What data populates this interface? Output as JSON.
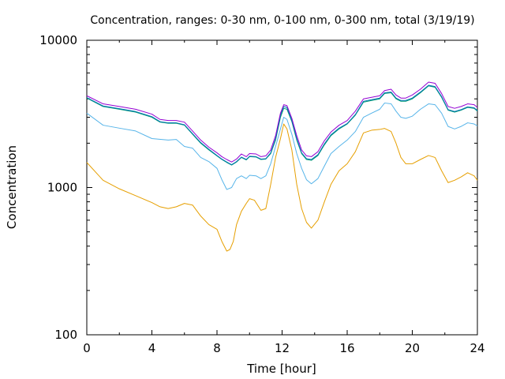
{
  "chart_data": {
    "type": "line",
    "title": "Concentration, ranges: 0-30 nm, 0-100 nm, 0-300 nm, total (3/19/19)",
    "xlabel": "Time [hour]",
    "ylabel": "Concentration",
    "xlim": [
      0,
      24
    ],
    "ylim": [
      100,
      10000
    ],
    "yscale": "log",
    "x_ticks": [
      "0",
      "4",
      "8",
      "12",
      "16",
      "20",
      "24"
    ],
    "y_ticks": [
      "100",
      "1000",
      "10000"
    ],
    "grid": false,
    "legend": "none",
    "series": [
      {
        "color": "#e69f00",
        "points": [
          [
            0,
            1480
          ],
          [
            1,
            1120
          ],
          [
            2,
            980
          ],
          [
            3,
            880
          ],
          [
            4,
            790
          ],
          [
            4.5,
            740
          ],
          [
            5,
            720
          ],
          [
            5.5,
            740
          ],
          [
            6,
            780
          ],
          [
            6.5,
            760
          ],
          [
            7,
            640
          ],
          [
            7.5,
            560
          ],
          [
            8,
            520
          ],
          [
            8.3,
            430
          ],
          [
            8.6,
            370
          ],
          [
            8.8,
            380
          ],
          [
            9,
            430
          ],
          [
            9.2,
            560
          ],
          [
            9.5,
            690
          ],
          [
            9.8,
            780
          ],
          [
            10,
            840
          ],
          [
            10.3,
            820
          ],
          [
            10.7,
            700
          ],
          [
            11,
            720
          ],
          [
            11.3,
            1050
          ],
          [
            11.6,
            1600
          ],
          [
            11.9,
            2150
          ],
          [
            12.1,
            2700
          ],
          [
            12.3,
            2500
          ],
          [
            12.6,
            1800
          ],
          [
            12.9,
            1050
          ],
          [
            13.2,
            720
          ],
          [
            13.5,
            580
          ],
          [
            13.8,
            530
          ],
          [
            14.2,
            600
          ],
          [
            14.6,
            800
          ],
          [
            15,
            1050
          ],
          [
            15.5,
            1300
          ],
          [
            16,
            1450
          ],
          [
            16.5,
            1750
          ],
          [
            17,
            2350
          ],
          [
            17.5,
            2450
          ],
          [
            18,
            2480
          ],
          [
            18.3,
            2520
          ],
          [
            18.7,
            2400
          ],
          [
            19,
            2000
          ],
          [
            19.3,
            1600
          ],
          [
            19.6,
            1450
          ],
          [
            20,
            1450
          ],
          [
            20.5,
            1550
          ],
          [
            21,
            1650
          ],
          [
            21.4,
            1600
          ],
          [
            21.8,
            1300
          ],
          [
            22.2,
            1080
          ],
          [
            22.6,
            1120
          ],
          [
            23,
            1180
          ],
          [
            23.4,
            1260
          ],
          [
            23.8,
            1200
          ],
          [
            24,
            1120
          ]
        ]
      },
      {
        "color": "#56b4e9",
        "points": [
          [
            0,
            3200
          ],
          [
            1,
            2650
          ],
          [
            2,
            2530
          ],
          [
            3,
            2420
          ],
          [
            4,
            2150
          ],
          [
            5,
            2100
          ],
          [
            5.5,
            2120
          ],
          [
            6,
            1900
          ],
          [
            6.5,
            1850
          ],
          [
            7,
            1600
          ],
          [
            7.5,
            1500
          ],
          [
            8,
            1350
          ],
          [
            8.3,
            1130
          ],
          [
            8.6,
            970
          ],
          [
            8.9,
            1000
          ],
          [
            9.2,
            1150
          ],
          [
            9.5,
            1200
          ],
          [
            9.8,
            1150
          ],
          [
            10,
            1210
          ],
          [
            10.4,
            1200
          ],
          [
            10.7,
            1150
          ],
          [
            11,
            1200
          ],
          [
            11.3,
            1450
          ],
          [
            11.6,
            1900
          ],
          [
            11.9,
            2500
          ],
          [
            12.1,
            3000
          ],
          [
            12.3,
            2900
          ],
          [
            12.6,
            2300
          ],
          [
            12.9,
            1700
          ],
          [
            13.2,
            1350
          ],
          [
            13.5,
            1130
          ],
          [
            13.8,
            1060
          ],
          [
            14.2,
            1150
          ],
          [
            14.6,
            1400
          ],
          [
            15,
            1700
          ],
          [
            15.5,
            1900
          ],
          [
            16,
            2100
          ],
          [
            16.5,
            2400
          ],
          [
            17,
            3000
          ],
          [
            17.5,
            3200
          ],
          [
            18,
            3400
          ],
          [
            18.3,
            3750
          ],
          [
            18.7,
            3700
          ],
          [
            19,
            3300
          ],
          [
            19.3,
            3000
          ],
          [
            19.6,
            2950
          ],
          [
            20,
            3050
          ],
          [
            20.5,
            3400
          ],
          [
            21,
            3700
          ],
          [
            21.4,
            3650
          ],
          [
            21.8,
            3200
          ],
          [
            22.2,
            2600
          ],
          [
            22.6,
            2500
          ],
          [
            23,
            2600
          ],
          [
            23.4,
            2750
          ],
          [
            23.8,
            2700
          ],
          [
            24,
            2620
          ]
        ]
      },
      {
        "color": "#009e73",
        "points": [
          [
            0,
            4050
          ],
          [
            1,
            3550
          ],
          [
            2,
            3400
          ],
          [
            3,
            3250
          ],
          [
            4,
            3000
          ],
          [
            4.5,
            2780
          ],
          [
            5,
            2730
          ],
          [
            5.5,
            2730
          ],
          [
            6,
            2650
          ],
          [
            6.5,
            2300
          ],
          [
            7,
            2000
          ],
          [
            7.5,
            1800
          ],
          [
            8,
            1640
          ],
          [
            8.3,
            1550
          ],
          [
            8.6,
            1480
          ],
          [
            8.9,
            1420
          ],
          [
            9.2,
            1490
          ],
          [
            9.5,
            1600
          ],
          [
            9.8,
            1540
          ],
          [
            10,
            1620
          ],
          [
            10.4,
            1610
          ],
          [
            10.7,
            1550
          ],
          [
            11,
            1560
          ],
          [
            11.3,
            1700
          ],
          [
            11.6,
            2100
          ],
          [
            11.9,
            3000
          ],
          [
            12.1,
            3450
          ],
          [
            12.3,
            3400
          ],
          [
            12.6,
            2800
          ],
          [
            12.9,
            2100
          ],
          [
            13.2,
            1700
          ],
          [
            13.5,
            1550
          ],
          [
            13.8,
            1530
          ],
          [
            14.2,
            1650
          ],
          [
            14.6,
            1950
          ],
          [
            15,
            2250
          ],
          [
            15.5,
            2500
          ],
          [
            16,
            2700
          ],
          [
            16.5,
            3100
          ],
          [
            17,
            3800
          ],
          [
            17.5,
            3900
          ],
          [
            18,
            4000
          ],
          [
            18.3,
            4350
          ],
          [
            18.7,
            4400
          ],
          [
            19,
            4000
          ],
          [
            19.3,
            3850
          ],
          [
            19.6,
            3850
          ],
          [
            20,
            4000
          ],
          [
            20.5,
            4400
          ],
          [
            21,
            4900
          ],
          [
            21.4,
            4800
          ],
          [
            21.8,
            4100
          ],
          [
            22.2,
            3350
          ],
          [
            22.6,
            3250
          ],
          [
            23,
            3350
          ],
          [
            23.4,
            3500
          ],
          [
            23.8,
            3450
          ],
          [
            24,
            3300
          ]
        ]
      },
      {
        "color": "#0072b2",
        "points": [
          [
            0,
            4080
          ],
          [
            1,
            3580
          ],
          [
            2,
            3430
          ],
          [
            3,
            3280
          ],
          [
            4,
            3030
          ],
          [
            4.5,
            2800
          ],
          [
            5,
            2750
          ],
          [
            5.5,
            2750
          ],
          [
            6,
            2670
          ],
          [
            6.5,
            2320
          ],
          [
            7,
            2020
          ],
          [
            7.5,
            1820
          ],
          [
            8,
            1650
          ],
          [
            8.3,
            1560
          ],
          [
            8.6,
            1490
          ],
          [
            8.9,
            1430
          ],
          [
            9.2,
            1500
          ],
          [
            9.5,
            1610
          ],
          [
            9.8,
            1550
          ],
          [
            10,
            1630
          ],
          [
            10.4,
            1620
          ],
          [
            10.7,
            1560
          ],
          [
            11,
            1570
          ],
          [
            11.3,
            1720
          ],
          [
            11.6,
            2150
          ],
          [
            11.9,
            3100
          ],
          [
            12.1,
            3550
          ],
          [
            12.3,
            3500
          ],
          [
            12.6,
            2850
          ],
          [
            12.9,
            2150
          ],
          [
            13.2,
            1720
          ],
          [
            13.5,
            1570
          ],
          [
            13.8,
            1550
          ],
          [
            14.2,
            1670
          ],
          [
            14.6,
            1980
          ],
          [
            15,
            2280
          ],
          [
            15.5,
            2530
          ],
          [
            16,
            2720
          ],
          [
            16.5,
            3130
          ],
          [
            17,
            3850
          ],
          [
            17.5,
            3950
          ],
          [
            18,
            4050
          ],
          [
            18.3,
            4400
          ],
          [
            18.7,
            4450
          ],
          [
            19,
            4050
          ],
          [
            19.3,
            3900
          ],
          [
            19.6,
            3900
          ],
          [
            20,
            4050
          ],
          [
            20.5,
            4450
          ],
          [
            21,
            4950
          ],
          [
            21.4,
            4850
          ],
          [
            21.8,
            4150
          ],
          [
            22.2,
            3380
          ],
          [
            22.6,
            3280
          ],
          [
            23,
            3380
          ],
          [
            23.4,
            3530
          ],
          [
            23.8,
            3480
          ],
          [
            24,
            3330
          ]
        ]
      },
      {
        "color": "#9400d3",
        "points": [
          [
            0,
            4200
          ],
          [
            1,
            3700
          ],
          [
            2,
            3550
          ],
          [
            3,
            3400
          ],
          [
            4,
            3150
          ],
          [
            4.5,
            2900
          ],
          [
            5,
            2850
          ],
          [
            5.5,
            2850
          ],
          [
            6,
            2780
          ],
          [
            6.5,
            2420
          ],
          [
            7,
            2100
          ],
          [
            7.5,
            1880
          ],
          [
            8,
            1720
          ],
          [
            8.3,
            1620
          ],
          [
            8.6,
            1550
          ],
          [
            8.9,
            1490
          ],
          [
            9.2,
            1560
          ],
          [
            9.5,
            1690
          ],
          [
            9.8,
            1620
          ],
          [
            10,
            1700
          ],
          [
            10.4,
            1690
          ],
          [
            10.7,
            1620
          ],
          [
            11,
            1640
          ],
          [
            11.3,
            1800
          ],
          [
            11.6,
            2250
          ],
          [
            11.9,
            3200
          ],
          [
            12.1,
            3650
          ],
          [
            12.3,
            3600
          ],
          [
            12.6,
            2950
          ],
          [
            12.9,
            2250
          ],
          [
            13.2,
            1800
          ],
          [
            13.5,
            1640
          ],
          [
            13.8,
            1620
          ],
          [
            14.2,
            1750
          ],
          [
            14.6,
            2080
          ],
          [
            15,
            2380
          ],
          [
            15.5,
            2650
          ],
          [
            16,
            2850
          ],
          [
            16.5,
            3300
          ],
          [
            17,
            4000
          ],
          [
            17.5,
            4100
          ],
          [
            18,
            4200
          ],
          [
            18.3,
            4550
          ],
          [
            18.7,
            4650
          ],
          [
            19,
            4250
          ],
          [
            19.3,
            4050
          ],
          [
            19.6,
            4050
          ],
          [
            20,
            4250
          ],
          [
            20.5,
            4650
          ],
          [
            21,
            5200
          ],
          [
            21.4,
            5100
          ],
          [
            21.8,
            4350
          ],
          [
            22.2,
            3550
          ],
          [
            22.6,
            3450
          ],
          [
            23,
            3550
          ],
          [
            23.4,
            3700
          ],
          [
            23.8,
            3650
          ],
          [
            24,
            3500
          ]
        ]
      }
    ]
  }
}
